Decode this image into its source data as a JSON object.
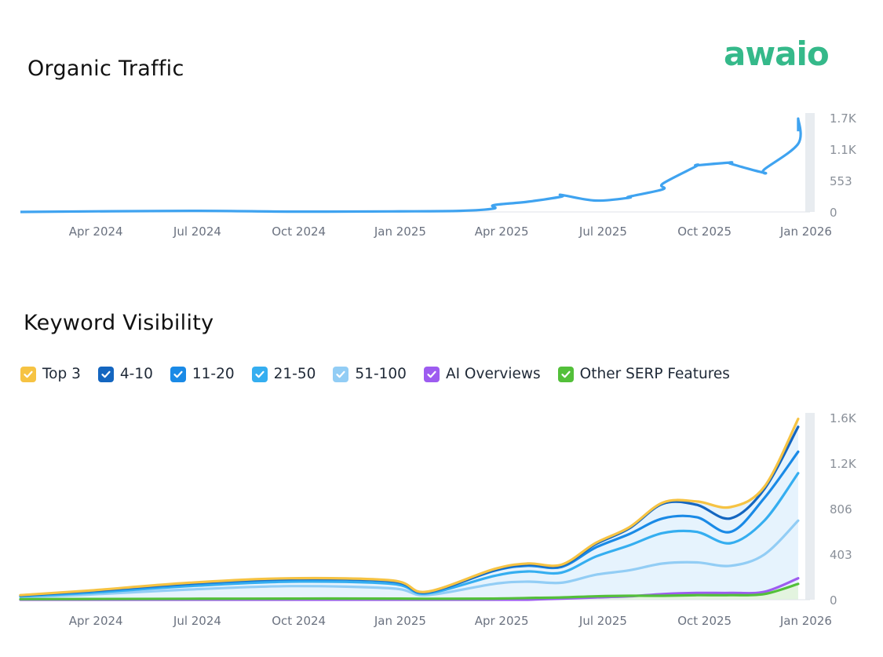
{
  "brand": {
    "logo_text": "awaio",
    "logo_color": "#35b98a"
  },
  "chart_data": [
    {
      "type": "line",
      "title": "Organic Traffic",
      "x_tick_labels": [
        "Apr 2024",
        "Jul 2024",
        "Oct 2024",
        "Jan 2025",
        "Apr 2025",
        "Jul 2025",
        "Oct 2025",
        "Jan 2026"
      ],
      "y_tick_labels": [
        "1.7K",
        "1.1K",
        "553",
        "0"
      ],
      "y_tick_values": [
        1659,
        1106,
        553,
        0
      ],
      "ylim": [
        0,
        1659
      ],
      "grid": false,
      "series": [
        {
          "name": "Organic Traffic",
          "color": "#3fa3f0",
          "x": [
            "Feb 2024",
            "Jul 2024",
            "Oct 2024",
            "Jan 2025",
            "Mar 2025",
            "Apr 2025",
            "Apr 2025",
            "May 2025",
            "Jun 2025",
            "Jun 2025",
            "Jul 2025",
            "Aug 2025",
            "Aug 2025",
            "Sep 2025",
            "Sep 2025",
            "Oct 2025",
            "Oct 2025",
            "Nov 2025",
            "Nov 2025",
            "Dec 2025",
            "Dec 2025",
            "Jan 2026",
            "Jan 2026",
            "Jan 2026"
          ],
          "values": [
            0,
            20,
            5,
            10,
            20,
            60,
            120,
            180,
            270,
            300,
            200,
            250,
            270,
            400,
            500,
            810,
            820,
            870,
            850,
            690,
            750,
            1200,
            1640,
            1420
          ]
        }
      ]
    },
    {
      "type": "area",
      "title": "Keyword Visibility",
      "x_tick_labels": [
        "Apr 2024",
        "Jul 2024",
        "Oct 2024",
        "Jan 2025",
        "Apr 2025",
        "Jul 2025",
        "Oct 2025",
        "Jan 2026"
      ],
      "y_tick_labels": [
        "1.6K",
        "1.2K",
        "806",
        "403",
        "0"
      ],
      "y_tick_values": [
        1612,
        1209,
        806,
        403,
        0
      ],
      "ylim": [
        0,
        1612
      ],
      "grid": false,
      "legend": "top-left",
      "x": [
        "Feb 2024",
        "Apr 2024",
        "Jul 2024",
        "Oct 2024",
        "Jan 2025",
        "Feb 2025",
        "Apr 2025",
        "May 2025",
        "Jun 2025",
        "Jul 2025",
        "Aug 2025",
        "Sep 2025",
        "Oct 2025",
        "Nov 2025",
        "Dec 2025",
        "Jan 2026"
      ],
      "series": [
        {
          "name": "Top 3",
          "color": "#f6c343",
          "values": [
            40,
            80,
            150,
            190,
            170,
            70,
            270,
            320,
            310,
            500,
            640,
            860,
            870,
            820,
            1000,
            1600
          ]
        },
        {
          "name": "4-10",
          "color": "#1466c0",
          "values": [
            38,
            76,
            145,
            185,
            165,
            65,
            260,
            310,
            300,
            490,
            630,
            850,
            840,
            720,
            980,
            1530
          ]
        },
        {
          "name": "11-20",
          "color": "#1a8ae6",
          "values": [
            35,
            72,
            138,
            180,
            160,
            62,
            255,
            300,
            290,
            460,
            580,
            720,
            730,
            600,
            900,
            1310
          ]
        },
        {
          "name": "21-50",
          "color": "#35aef0",
          "values": [
            30,
            60,
            120,
            160,
            140,
            55,
            210,
            250,
            240,
            380,
            480,
            590,
            600,
            500,
            700,
            1120
          ]
        },
        {
          "name": "51-100",
          "color": "#92cdf5",
          "values": [
            22,
            45,
            90,
            120,
            100,
            40,
            140,
            160,
            150,
            220,
            260,
            320,
            330,
            300,
            400,
            700
          ]
        },
        {
          "name": "AI Overviews",
          "color": "#9d5cf0",
          "values": [
            0,
            0,
            0,
            0,
            0,
            0,
            0,
            0,
            10,
            20,
            30,
            50,
            60,
            60,
            70,
            190
          ]
        },
        {
          "name": "Other SERP Features",
          "color": "#53c03a",
          "values": [
            5,
            6,
            8,
            10,
            10,
            8,
            10,
            15,
            20,
            30,
            35,
            35,
            40,
            40,
            50,
            140
          ]
        }
      ]
    }
  ]
}
